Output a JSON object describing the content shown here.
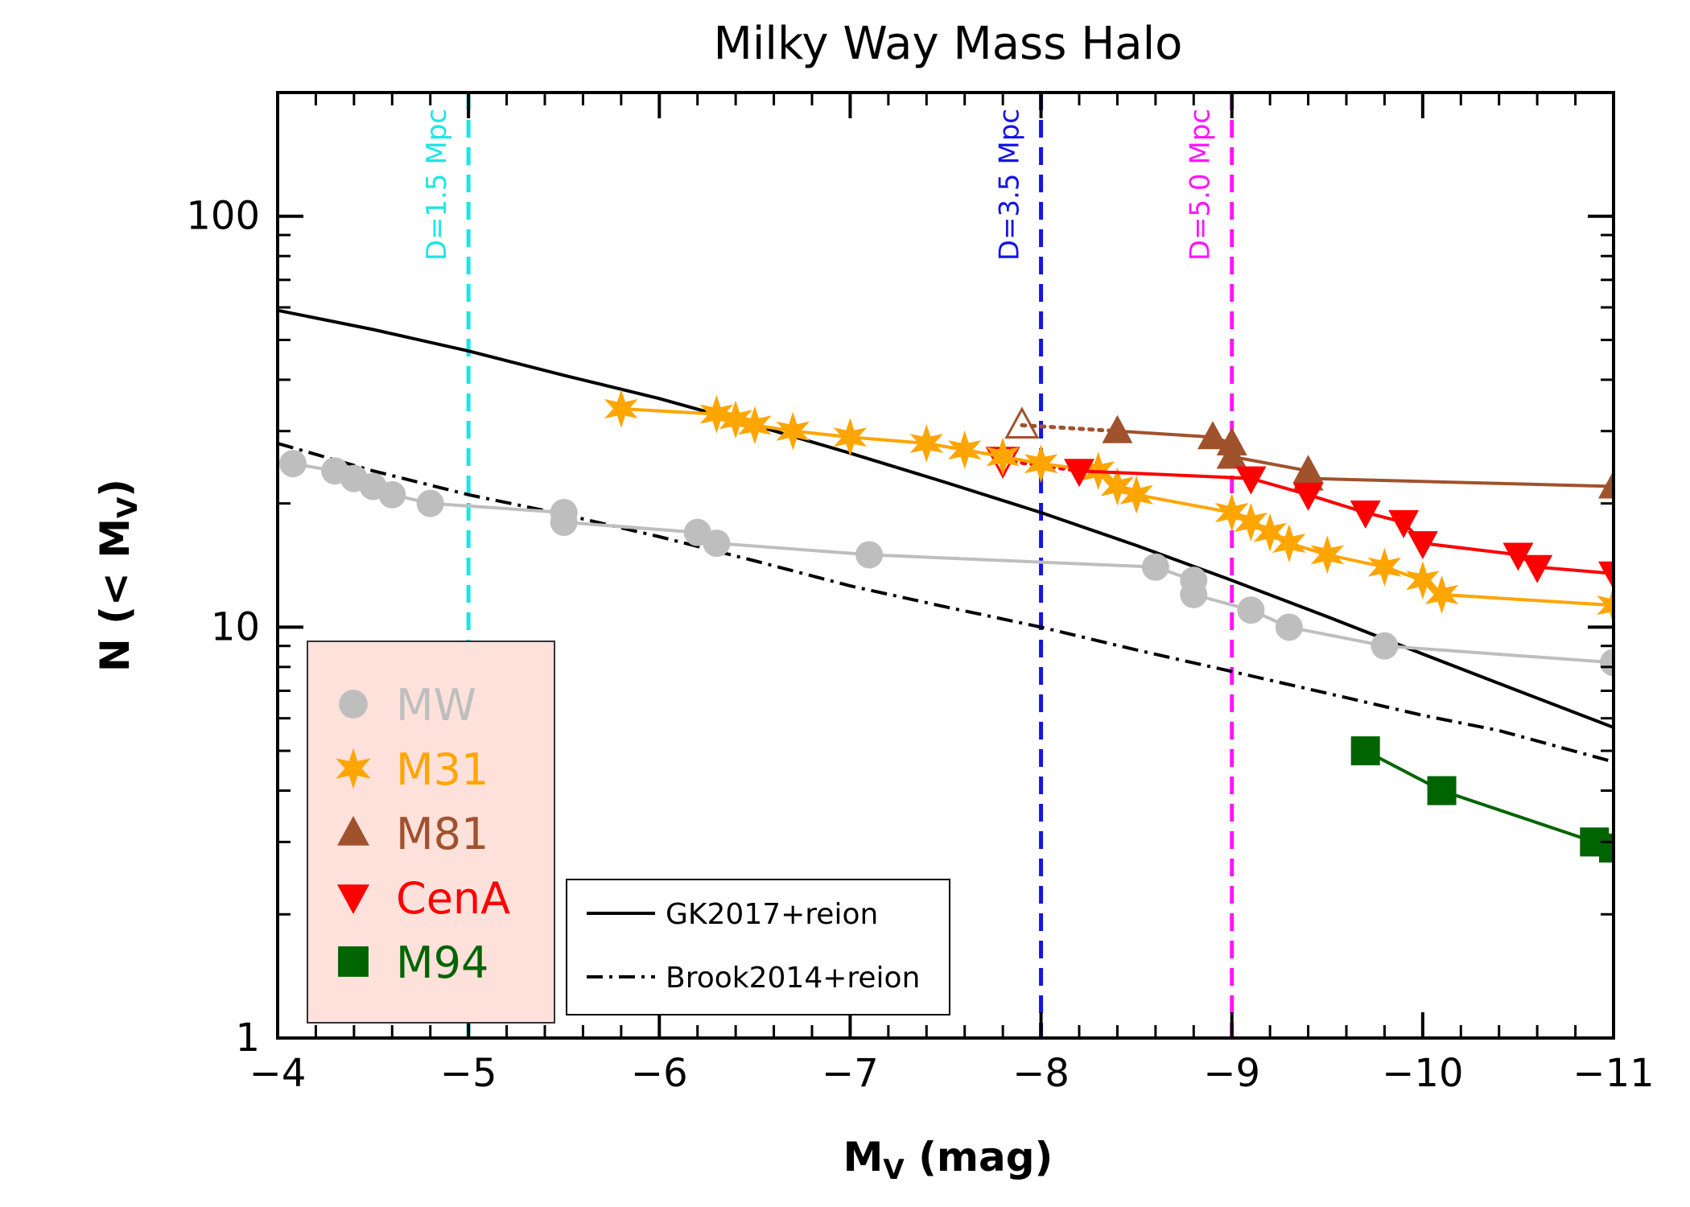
{
  "chart_data": {
    "type": "line",
    "title": "Milky Way Mass Halo",
    "xlabel": "M",
    "xlabel_sub": "V",
    "xlabel_suffix": " (mag)",
    "ylabel": "N (< M",
    "ylabel_sub": "V",
    "ylabel_suffix": ")",
    "xlim": [
      -4,
      -11
    ],
    "ylim": [
      1,
      200
    ],
    "yscale": "log",
    "xticks": [
      -4,
      -5,
      -6,
      -7,
      -8,
      -9,
      -10,
      -11
    ],
    "xtick_labels": [
      "−4",
      "−5",
      "−6",
      "−7",
      "−8",
      "−9",
      "−10",
      "−11"
    ],
    "yticks_major": [
      1,
      10,
      100
    ],
    "ytick_labels": [
      "1",
      "10",
      "100"
    ],
    "vlines": [
      {
        "x": -5,
        "label": "D=1.5 Mpc",
        "color": "#19e6e6"
      },
      {
        "x": -8,
        "label": "D=3.5 Mpc",
        "color": "#1414e6"
      },
      {
        "x": -9,
        "label": "D=5.0 Mpc",
        "color": "#ff14ff"
      }
    ],
    "models": [
      {
        "name": "GK2017+reion",
        "style": "solid",
        "x": [
          -4,
          -4.5,
          -5,
          -5.5,
          -6,
          -6.5,
          -7,
          -7.5,
          -8,
          -8.5,
          -9,
          -9.5,
          -10,
          -10.5,
          -11
        ],
        "y": [
          59,
          53,
          47,
          41,
          36,
          31,
          26.5,
          22.5,
          19,
          15.8,
          13,
          10.6,
          8.6,
          7,
          5.7
        ]
      },
      {
        "name": "Brook2014+reion",
        "style": "dashdot",
        "x": [
          -4,
          -4.5,
          -5,
          -5.5,
          -6,
          -6.5,
          -7,
          -7.5,
          -8,
          -8.5,
          -9,
          -9.5,
          -10,
          -10.4,
          -11
        ],
        "y": [
          28,
          24,
          21,
          18.8,
          16.6,
          14.5,
          12.6,
          11.2,
          10,
          8.8,
          7.8,
          6.9,
          6.1,
          5.6,
          4.7
        ]
      }
    ],
    "series": [
      {
        "name": "MW",
        "color": "#bebebe",
        "marker": "circle",
        "x": [
          -4.08,
          -4.3,
          -4.4,
          -4.5,
          -4.6,
          -4.8,
          -5.5,
          -5.5,
          -6.2,
          -6.3,
          -7.1,
          -8.6,
          -8.8,
          -8.8,
          -9.1,
          -9.3,
          -9.8,
          -11
        ],
        "y": [
          25,
          24,
          23,
          22,
          21,
          20,
          19,
          18,
          17,
          16,
          15,
          14,
          13,
          12,
          11,
          10,
          9,
          8.2
        ]
      },
      {
        "name": "M31",
        "color": "#ffa500",
        "marker": "star",
        "x": [
          -5.8,
          -6.3,
          -6.4,
          -6.5,
          -6.7,
          -7.0,
          -7.4,
          -7.6,
          -7.8,
          -8.0,
          -8.3,
          -8.4,
          -8.5,
          -9.0,
          -9.1,
          -9.2,
          -9.3,
          -9.5,
          -9.8,
          -10.0,
          -10.1,
          -11
        ],
        "y": [
          34,
          33,
          32,
          31,
          30,
          29,
          28,
          27,
          26,
          25,
          24,
          22,
          21,
          19,
          18,
          17,
          16,
          15,
          14,
          13,
          12,
          11.3
        ]
      },
      {
        "name": "M81",
        "color": "#a0522d",
        "marker": "triangle-up",
        "x": [
          -8.4,
          -8.9,
          -9.0,
          -9.0,
          -9.4,
          -9.4,
          -11
        ],
        "y": [
          30,
          29,
          28,
          26,
          24,
          23,
          22
        ]
      },
      {
        "name": "CenA",
        "color": "#ff0000",
        "marker": "triangle-down",
        "x": [
          -8.2,
          -9.1,
          -9.4,
          -9.7,
          -9.9,
          -10.0,
          -10.5,
          -10.6,
          -11
        ],
        "y": [
          24,
          23,
          21,
          19,
          18,
          16,
          15,
          14,
          13.5
        ]
      },
      {
        "name": "M94",
        "color": "#006400",
        "marker": "square",
        "x": [
          -9.7,
          -10.1,
          -10.9,
          -11
        ],
        "y": [
          5,
          4,
          3,
          2.9
        ]
      }
    ],
    "open_markers": [
      {
        "name": "M81",
        "x": -7.9,
        "y": 31,
        "marker": "triangle-up",
        "color": "#a0522d",
        "connect_to": [
          -8.4,
          30
        ]
      },
      {
        "name": "CenA",
        "x": -7.8,
        "y": 25.5,
        "marker": "triangle-down",
        "color": "#ff0000",
        "connect_to": [
          -8.2,
          24
        ]
      }
    ],
    "legend": {
      "position": "bottom-left",
      "entries": [
        {
          "name": "MW",
          "color": "#bebebe",
          "marker": "circle"
        },
        {
          "name": "M31",
          "color": "#ffa500",
          "marker": "star"
        },
        {
          "name": "M81",
          "color": "#a0522d",
          "marker": "triangle-up"
        },
        {
          "name": "CenA",
          "color": "#ff0000",
          "marker": "triangle-down"
        },
        {
          "name": "M94",
          "color": "#006400",
          "marker": "square"
        }
      ],
      "background": "#ffe1dc"
    },
    "model_legend": {
      "position": "bottom-center",
      "entries": [
        {
          "name": "GK2017+reion",
          "style": "solid"
        },
        {
          "name": "Brook2014+reion",
          "style": "dashdot"
        }
      ]
    }
  }
}
